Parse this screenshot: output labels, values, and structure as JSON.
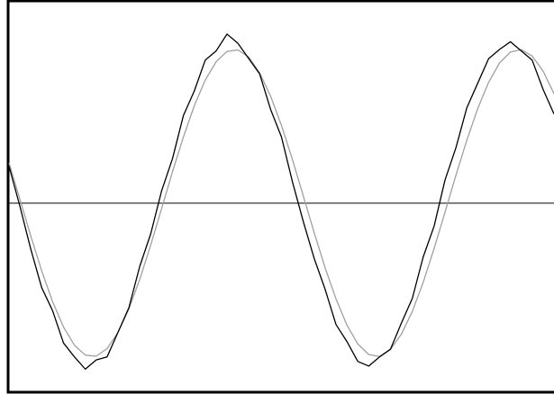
{
  "chart_data": {
    "type": "line",
    "x": [
      0,
      2,
      4,
      6,
      8,
      10,
      12,
      14,
      16,
      18,
      20,
      22,
      24,
      26,
      28,
      30,
      32,
      34,
      36,
      38,
      40,
      42,
      44,
      46,
      48,
      50,
      52,
      54,
      56,
      58,
      60,
      62,
      64,
      66,
      68,
      70,
      72,
      74,
      76,
      78,
      80,
      82,
      84,
      86,
      88,
      90,
      92,
      94,
      96,
      98,
      100
    ],
    "series": [
      {
        "color": "#a0a0a0",
        "values": [
          0.262,
          0.025,
          -0.214,
          -0.441,
          -0.641,
          -0.806,
          -0.924,
          -0.989,
          -0.996,
          -0.946,
          -0.841,
          -0.688,
          -0.495,
          -0.273,
          -0.036,
          0.204,
          0.43,
          0.634,
          0.8,
          0.92,
          0.987,
          0.997,
          0.95,
          0.847,
          0.696,
          0.505,
          0.285,
          0.047,
          -0.192,
          -0.42,
          -0.623,
          -0.793,
          -0.916,
          -0.985,
          -0.998,
          -0.952,
          -0.852,
          -0.705,
          -0.515,
          -0.295,
          -0.059,
          0.181,
          0.409,
          0.615,
          0.786,
          0.912,
          0.983,
          0.999,
          0.957,
          0.859,
          0.712
        ]
      },
      {
        "color": "#000000",
        "values": [
          0.24,
          -0.02,
          -0.3,
          -0.55,
          -0.7,
          -0.91,
          -1.0,
          -1.08,
          -1.02,
          -1.0,
          -0.84,
          -0.68,
          -0.41,
          -0.2,
          0.08,
          0.29,
          0.57,
          0.73,
          0.93,
          0.99,
          1.1,
          1.04,
          0.94,
          0.84,
          0.61,
          0.43,
          0.14,
          -0.12,
          -0.36,
          -0.56,
          -0.79,
          -0.9,
          -1.03,
          -1.06,
          -1.0,
          -0.95,
          -0.78,
          -0.62,
          -0.35,
          -0.15,
          0.15,
          0.36,
          0.62,
          0.78,
          0.94,
          1.0,
          1.05,
          0.99,
          0.93,
          0.74,
          0.58
        ]
      }
    ],
    "xlim": [
      0,
      100
    ],
    "ylim": [
      -1.23,
      1.31
    ],
    "zero_line": true
  }
}
